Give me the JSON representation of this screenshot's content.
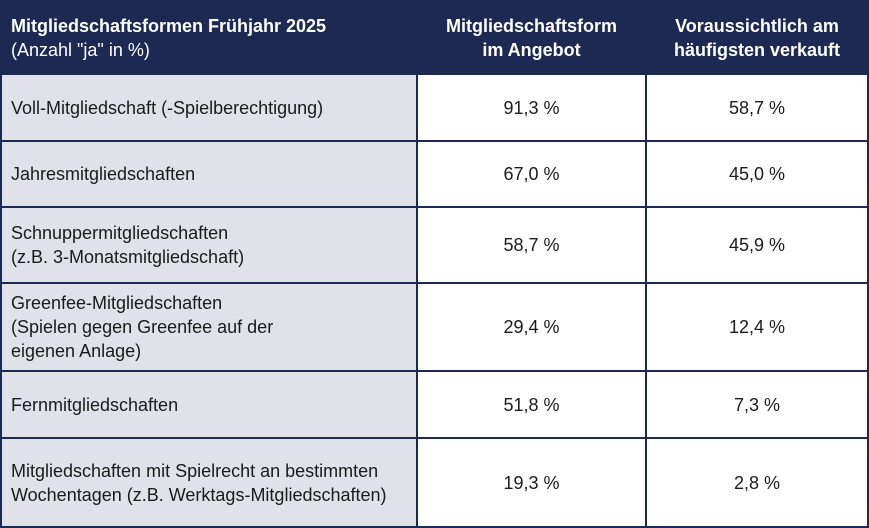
{
  "header": {
    "col1_title": "Mitgliedschaftsformen Frühjahr 2025",
    "col1_subtitle": "(Anzahl \"ja\" in %)",
    "col2": "Mitgliedschaftsform\nim Angebot",
    "col3": "Voraussichtlich am\nhäufigsten verkauft"
  },
  "rows": [
    {
      "label": "Voll-Mitgliedschaft (-Spielberechtigung)",
      "offered": "91,3 %",
      "most_sold": "58,7 %"
    },
    {
      "label": "Jahresmitgliedschaften",
      "offered": "67,0 %",
      "most_sold": "45,0 %"
    },
    {
      "label": "Schnuppermitgliedschaften\n(z.B. 3-Monatsmitgliedschaft)",
      "offered": "58,7 %",
      "most_sold": "45,9 %"
    },
    {
      "label": "Greenfee-Mitgliedschaften\n(Spielen gegen Greenfee auf der\neigenen Anlage)",
      "offered": "29,4 %",
      "most_sold": "12,4 %"
    },
    {
      "label": "Fernmitgliedschaften",
      "offered": "51,8 %",
      "most_sold": "7,3 %"
    },
    {
      "label": "Mitgliedschaften mit Spielrecht an bestimmten\nWochentagen (z.B. Werktags-Mitgliedschaften)",
      "offered": "19,3 %",
      "most_sold": "2,8 %"
    }
  ],
  "colors": {
    "header_bg": "#1c2952",
    "label_bg": "#e0e1e9",
    "value_bg": "#ffffff"
  }
}
